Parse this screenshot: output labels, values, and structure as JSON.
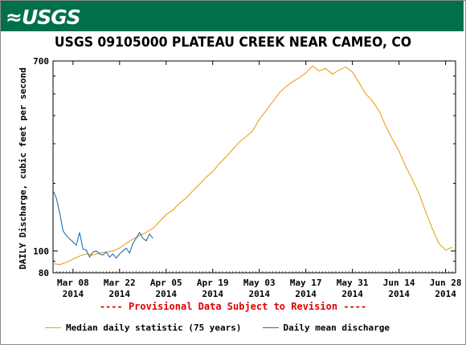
{
  "header": {
    "logo_text": "≈USGS"
  },
  "chart_data": {
    "type": "line",
    "title": "USGS 09105000 PLATEAU CREEK NEAR CAMEO, CO",
    "ylabel": "DAILY Discharge, cubic feet per second",
    "y_scale": "log",
    "ylim": [
      80,
      700
    ],
    "ytick_labels": [
      "700",
      "100",
      "80"
    ],
    "xlim": [
      "2014-03-02",
      "2014-07-01"
    ],
    "xtick_labels": [
      {
        "month": "Mar 08",
        "year": "2014"
      },
      {
        "month": "Mar 22",
        "year": "2014"
      },
      {
        "month": "Apr 05",
        "year": "2014"
      },
      {
        "month": "Apr 19",
        "year": "2014"
      },
      {
        "month": "May 03",
        "year": "2014"
      },
      {
        "month": "May 17",
        "year": "2014"
      },
      {
        "month": "May 31",
        "year": "2014"
      },
      {
        "month": "Jun 14",
        "year": "2014"
      },
      {
        "month": "Jun 28",
        "year": "2014"
      }
    ],
    "series": [
      {
        "name": "Median daily statistic (75 years)",
        "color": "#e8a317",
        "x": [
          "2014-03-02",
          "2014-03-04",
          "2014-03-06",
          "2014-03-08",
          "2014-03-10",
          "2014-03-12",
          "2014-03-14",
          "2014-03-16",
          "2014-03-18",
          "2014-03-20",
          "2014-03-22",
          "2014-03-24",
          "2014-03-26",
          "2014-03-28",
          "2014-03-30",
          "2014-04-01",
          "2014-04-03",
          "2014-04-05",
          "2014-04-07",
          "2014-04-09",
          "2014-04-11",
          "2014-04-13",
          "2014-04-15",
          "2014-04-17",
          "2014-04-19",
          "2014-04-21",
          "2014-04-23",
          "2014-04-25",
          "2014-04-27",
          "2014-04-29",
          "2014-05-01",
          "2014-05-03",
          "2014-05-05",
          "2014-05-07",
          "2014-05-09",
          "2014-05-11",
          "2014-05-13",
          "2014-05-15",
          "2014-05-17",
          "2014-05-19",
          "2014-05-21",
          "2014-05-23",
          "2014-05-25",
          "2014-05-27",
          "2014-05-29",
          "2014-05-31",
          "2014-06-02",
          "2014-06-04",
          "2014-06-06",
          "2014-06-08",
          "2014-06-10",
          "2014-06-12",
          "2014-06-14",
          "2014-06-16",
          "2014-06-18",
          "2014-06-20",
          "2014-06-22",
          "2014-06-24",
          "2014-06-26",
          "2014-06-28",
          "2014-06-30"
        ],
        "values": [
          88,
          87,
          89,
          92,
          95,
          97,
          96,
          98,
          99,
          100,
          103,
          108,
          113,
          117,
          121,
          126,
          135,
          145,
          152,
          163,
          172,
          185,
          198,
          213,
          225,
          245,
          262,
          283,
          305,
          322,
          342,
          385,
          420,
          460,
          505,
          538,
          565,
          590,
          620,
          665,
          632,
          648,
          612,
          638,
          658,
          625,
          560,
          500,
          465,
          420,
          360,
          315,
          278,
          238,
          208,
          180,
          150,
          126,
          108,
          101,
          104
        ]
      },
      {
        "name": "Daily mean discharge",
        "color": "#1f6fbf",
        "x": [
          "2014-03-02",
          "2014-03-03",
          "2014-03-04",
          "2014-03-05",
          "2014-03-06",
          "2014-03-07",
          "2014-03-08",
          "2014-03-09",
          "2014-03-10",
          "2014-03-11",
          "2014-03-12",
          "2014-03-13",
          "2014-03-14",
          "2014-03-15",
          "2014-03-16",
          "2014-03-17",
          "2014-03-18",
          "2014-03-19",
          "2014-03-20",
          "2014-03-21",
          "2014-03-22",
          "2014-03-23",
          "2014-03-24",
          "2014-03-25",
          "2014-03-26",
          "2014-03-27",
          "2014-03-28",
          "2014-03-29",
          "2014-03-30",
          "2014-03-31",
          "2014-04-01"
        ],
        "values": [
          186,
          172,
          148,
          123,
          117,
          113,
          110,
          106,
          121,
          102,
          101,
          94,
          99,
          100,
          97,
          96,
          99,
          94,
          97,
          93,
          97,
          100,
          103,
          98,
          108,
          114,
          121,
          114,
          111,
          119,
          114
        ]
      }
    ],
    "annotation": "---- Provisional Data Subject to Revision ----",
    "legend": "bottom",
    "grid": false
  }
}
